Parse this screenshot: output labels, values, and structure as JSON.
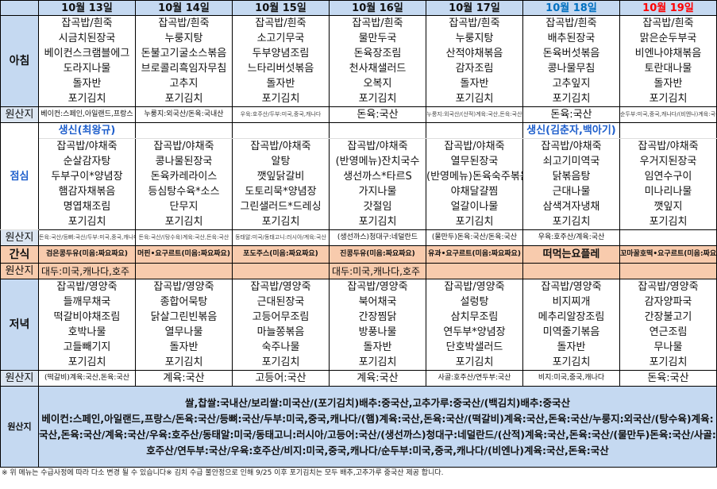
{
  "labels": {
    "breakfast": "아침",
    "lunch": "점심",
    "snack": "간식",
    "dinner": "저녁",
    "origin": "원산지"
  },
  "colors": {
    "header_bg": "#c5d9f1",
    "snack_bg": "#f8cbad",
    "saturday": "#0070c0",
    "sunday": "#ff0000",
    "note": "#1f5fcc"
  },
  "days": [
    {
      "date": "10월 13일",
      "breakfast": [
        "잡곡밥/흰죽",
        "시금치된장국",
        "베이컨스크램블에그",
        "도라지나물",
        "돌자반",
        "포기김치"
      ],
      "breakfast_origin": "베이컨:스페인,아일랜드,프랑스",
      "lunch_note": "생신(최왕규)",
      "lunch": [
        "잡곡밥/야채죽",
        "순살감자탕",
        "두부구이*양념장",
        "햄감자채볶음",
        "명엽채조림",
        "포기김치"
      ],
      "lunch_origin": "돈육:국산/등뼈:국산/두부:미국,중국,캐나다/(햄)계육:국산,돈육:국산",
      "snack": "검은콩두유(미음:짜요짜요)",
      "snack_origin": "대두:미국,캐나다,호주",
      "dinner": [
        "잡곡밥/영양죽",
        "들깨무채국",
        "떡갈비야채조림",
        "호박나물",
        "고들빼기지",
        "포기김치"
      ],
      "dinner_origin": "(떡갈비)계육:국산,돈육:국산"
    },
    {
      "date": "10월 14일",
      "breakfast": [
        "잡곡밥/흰죽",
        "누룽지탕",
        "돈불고기굴소스볶음",
        "브로콜리흑임자무침",
        "고추지",
        "포기김치"
      ],
      "breakfast_origin": "누룽지:외국산/돈육:국내산",
      "lunch_note": "",
      "lunch": [
        "잡곡밥/야채죽",
        "콩나물된장국",
        "돈육카레라이스",
        "등심탕수육*소스",
        "단무지",
        "포기김치"
      ],
      "lunch_origin": "돈육:국산/(탕수육)계육:국산,돈육:국산",
      "snack": "머핀•요구르트(미음:짜요짜요)",
      "snack_origin": "",
      "dinner": [
        "잡곡밥/영양죽",
        "종합어묵탕",
        "닭살그린빈볶음",
        "열무나물",
        "돌자반",
        "포기김치"
      ],
      "dinner_origin": "계육:국산"
    },
    {
      "date": "10월 15일",
      "breakfast": [
        "잡곡밥/흰죽",
        "소고기무국",
        "두부양념조림",
        "느타리버섯볶음",
        "돌자반",
        "포기김치"
      ],
      "breakfast_origin": "우육:호주산/두부:미국,중국,캐나다",
      "lunch_note": "",
      "lunch": [
        "잡곡밥/야채죽",
        "알탕",
        "깻잎닭갈비",
        "도토리묵*양념장",
        "그린샐러드*드레싱",
        "포기김치"
      ],
      "lunch_origin": "동태알:미국/동태고니:러시아/계육:국산",
      "snack": "포도주스(미음:짜요짜요)",
      "snack_origin": "",
      "dinner": [
        "잡곡밥/영양죽",
        "근대된장국",
        "고등어무조림",
        "마늘쫑볶음",
        "숙주나물",
        "포기김치"
      ],
      "dinner_origin": "고등어:국산"
    },
    {
      "date": "10월 16일",
      "breakfast": [
        "잡곡밥/흰죽",
        "물만두국",
        "돈육장조림",
        "천사채샐러드",
        "오복지",
        "포기김치"
      ],
      "breakfast_origin": "돈육:국산",
      "lunch_note": "",
      "lunch": [
        "잡곡밥/야채죽",
        "(반영메뉴)잔치국수",
        "생선까스*타르S",
        "가지나물",
        "갓절임",
        "포기김치"
      ],
      "lunch_origin": "(생선까스)청대구:네덜란드",
      "snack": "진콩두유(미음:짜요짜요)",
      "snack_origin": "대두:미국,캐나다,호주",
      "dinner": [
        "잡곡밥/영양죽",
        "북어채국",
        "간장찜닭",
        "방풍나물",
        "돌자반",
        "포기김치"
      ],
      "dinner_origin": "계육:국산"
    },
    {
      "date": "10월 17일",
      "breakfast": [
        "잡곡밥/흰죽",
        "누룽지탕",
        "산적야채볶음",
        "감자조림",
        "돌자반",
        "포기김치"
      ],
      "breakfast_origin": "누룽지:외국산/(산적)계육:국산,돈육:국산",
      "lunch_note": "",
      "lunch": [
        "잡곡밥/야채죽",
        "열무된장국",
        "(반영메뉴)돈육숙주볶음",
        "야채달걀찜",
        "얼갈이나물",
        "포기김치"
      ],
      "lunch_origin": "(물만두)돈육:국산/돈육:국산",
      "snack": "유과•요구르트(미음:짜요짜요)",
      "snack_origin": "",
      "dinner": [
        "잡곡밥/영양죽",
        "설렁탕",
        "삼치무조림",
        "연두부*양념장",
        "단호박샐러드",
        "포기김치"
      ],
      "dinner_origin": "사골:호주산/연두부:국산"
    },
    {
      "date": "10월 18일",
      "breakfast": [
        "잡곡밥/흰죽",
        "배추된장국",
        "돈육버섯볶음",
        "콩나물무침",
        "고추잎지",
        "포기김치"
      ],
      "breakfast_origin": "돈육:국산",
      "lunch_note": "생신(김춘자,백아기)",
      "lunch": [
        "잡곡밥/야채죽",
        "쇠고기미역국",
        "닭볶음탕",
        "근대나물",
        "삼색겨자냉채",
        "포기김치"
      ],
      "lunch_origin": "우육:호주산/계육:국산",
      "snack": "떠먹는요플레",
      "snack_origin": "",
      "dinner": [
        "잡곡밥/영양죽",
        "비지찌개",
        "메추리알장조림",
        "미역줄기볶음",
        "돌자반",
        "포기김치"
      ],
      "dinner_origin": "비지:미국,중국,캐나다"
    },
    {
      "date": "10월 19일",
      "breakfast": [
        "잡곡밥/흰죽",
        "맑은순두부국",
        "비엔나야채볶음",
        "토란대나물",
        "돌자반",
        "포기김치"
      ],
      "breakfast_origin": "순두부:미국,중국,캐나다/(비엔나)계육:국산,돈육:국산",
      "lunch_note": "",
      "lunch": [
        "잡곡밥/야채죽",
        "우거지된장국",
        "임연수구이",
        "미나리나물",
        "깻잎지",
        "포기김치"
      ],
      "lunch_origin": "",
      "snack": "꼬마꿀호떡•요구르트(미음:짜요짜요)",
      "snack_origin": "",
      "dinner": [
        "잡곡밥/영양죽",
        "감자양파국",
        "간장불고기",
        "연근조림",
        "무나물",
        "포기김치"
      ],
      "dinner_origin": "돈육:국산"
    }
  ],
  "origin_summary": [
    "쌀,찹쌀:국내산/보리쌀:미국산/(포기김치)배추:중국산,고추가루:중국산/(백김치)배추:중국산",
    "베이컨:스페인,아일랜드,프랑스/돈육:국산/등뼈:국산/두부:미국,중국,캐나다/(햄)계육:국산,돈육:국산/(떡갈비)계육:국산,돈육:국산/누룽지:외국산/(탕수육)계육:국산,돈육:국산/계육:국산/우육:호주산/동태알:미국/동태고니:러시아/고등어:국산/(생선까스)청대구:네덜란드/(산적)계육:국산,돈육:국산/(물만두)돈육:국산/사골:호주산/연두부:국산/우육:호주산/비지:미국,중국,캐나다/순두부:미국,중국,캐나다/(비엔나)계육:국산,돈육:국산"
  ],
  "footer": "※ 위 메뉴는 수급사정에 따라 다소 변경 될 수 있습니다※  김치 수급 불안정으로 인해 9/25 이후 포기김치는 모두 배추,고추가루 중국산 제공 합니다."
}
